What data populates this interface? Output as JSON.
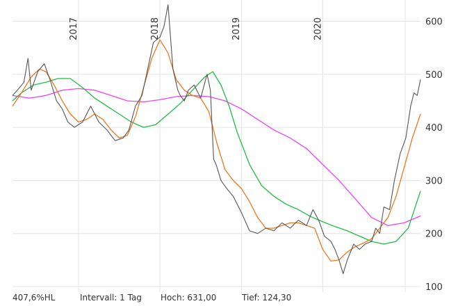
{
  "chart_data": {
    "type": "line",
    "y_ticks": [
      100,
      200,
      300,
      400,
      500,
      600
    ],
    "y_tick_labels": [
      "100",
      "200",
      "300",
      "400",
      "500",
      "600"
    ],
    "ylim": [
      100,
      640
    ],
    "x_tick_labels": [
      "2017",
      "2018",
      "2019",
      "2020"
    ],
    "x_ticks": [
      2017.0,
      2018.0,
      2019.0,
      2020.0
    ],
    "xlim": [
      2016.19,
      2021.2
    ],
    "grid": true,
    "series": [
      {
        "role": "price",
        "color": "#555555",
        "x": [
          2016.19,
          2016.25,
          2016.33,
          2016.38,
          2016.42,
          2016.5,
          2016.58,
          2016.65,
          2016.73,
          2016.8,
          2016.87,
          2016.95,
          2017.05,
          2017.15,
          2017.25,
          2017.35,
          2017.45,
          2017.55,
          2017.62,
          2017.7,
          2017.78,
          2017.85,
          2017.92,
          2018.0,
          2018.05,
          2018.1,
          2018.16,
          2018.22,
          2018.25,
          2018.3,
          2018.35,
          2018.42,
          2018.5,
          2018.58,
          2018.62,
          2018.66,
          2018.69,
          2018.71,
          2018.75,
          2018.82,
          2018.9,
          2019.0,
          2019.1,
          2019.2,
          2019.3,
          2019.4,
          2019.5,
          2019.6,
          2019.7,
          2019.8,
          2019.88,
          2019.95,
          2020.02,
          2020.1,
          2020.15,
          2020.2,
          2020.25,
          2020.3,
          2020.38,
          2020.45,
          2020.52,
          2020.6,
          2020.65,
          2020.7,
          2020.75,
          2020.82,
          2020.88,
          2020.95,
          2021.02,
          2021.08,
          2021.12,
          2021.16,
          2021.2
        ],
        "y": [
          460,
          470,
          485,
          530,
          470,
          505,
          520,
          490,
          450,
          435,
          410,
          400,
          410,
          440,
          410,
          395,
          375,
          380,
          395,
          440,
          460,
          510,
          560,
          570,
          590,
          631,
          510,
          470,
          460,
          450,
          470,
          480,
          455,
          500,
          470,
          340,
          330,
          320,
          300,
          285,
          270,
          240,
          205,
          200,
          210,
          205,
          220,
          210,
          225,
          215,
          245,
          225,
          195,
          185,
          170,
          150,
          124,
          150,
          180,
          170,
          180,
          185,
          210,
          200,
          250,
          245,
          300,
          350,
          380,
          440,
          465,
          460,
          490
        ]
      },
      {
        "role": "average-1",
        "color": "#ee7722",
        "x": [
          2016.19,
          2016.3,
          2016.42,
          2016.52,
          2016.6,
          2016.7,
          2016.8,
          2016.9,
          2017.0,
          2017.1,
          2017.2,
          2017.3,
          2017.4,
          2017.5,
          2017.6,
          2017.7,
          2017.8,
          2017.9,
          2018.0,
          2018.1,
          2018.2,
          2018.3,
          2018.4,
          2018.5,
          2018.6,
          2018.7,
          2018.8,
          2018.9,
          2019.0,
          2019.1,
          2019.2,
          2019.3,
          2019.4,
          2019.5,
          2019.6,
          2019.7,
          2019.8,
          2019.9,
          2020.0,
          2020.1,
          2020.2,
          2020.3,
          2020.4,
          2020.5,
          2020.6,
          2020.7,
          2020.8,
          2020.9,
          2021.0,
          2021.1,
          2021.2
        ],
        "y": [
          440,
          465,
          495,
          510,
          505,
          480,
          450,
          425,
          410,
          415,
          425,
          415,
          395,
          380,
          385,
          420,
          475,
          530,
          565,
          540,
          490,
          470,
          460,
          455,
          430,
          370,
          320,
          300,
          285,
          260,
          230,
          210,
          210,
          215,
          220,
          220,
          215,
          210,
          170,
          148,
          150,
          165,
          175,
          182,
          190,
          210,
          230,
          270,
          325,
          380,
          425
        ]
      },
      {
        "role": "average-2",
        "color": "#22bb44",
        "x": [
          2016.19,
          2016.3,
          2016.45,
          2016.6,
          2016.75,
          2016.9,
          2017.05,
          2017.2,
          2017.35,
          2017.5,
          2017.65,
          2017.8,
          2017.95,
          2018.1,
          2018.25,
          2018.4,
          2018.55,
          2018.65,
          2018.75,
          2018.85,
          2018.95,
          2019.1,
          2019.25,
          2019.4,
          2019.55,
          2019.7,
          2019.85,
          2020.0,
          2020.15,
          2020.3,
          2020.45,
          2020.6,
          2020.75,
          2020.9,
          2021.05,
          2021.2
        ],
        "y": [
          450,
          465,
          480,
          485,
          492,
          492,
          475,
          455,
          440,
          425,
          410,
          400,
          405,
          425,
          445,
          470,
          495,
          505,
          480,
          440,
          390,
          330,
          290,
          270,
          255,
          245,
          232,
          222,
          213,
          205,
          195,
          185,
          180,
          185,
          210,
          280
        ]
      },
      {
        "role": "average-3",
        "color": "#ee44ee",
        "x": [
          2016.19,
          2016.4,
          2016.6,
          2016.8,
          2017.0,
          2017.2,
          2017.4,
          2017.6,
          2017.8,
          2018.0,
          2018.2,
          2018.4,
          2018.6,
          2018.8,
          2019.0,
          2019.2,
          2019.4,
          2019.6,
          2019.8,
          2020.0,
          2020.2,
          2020.4,
          2020.6,
          2020.8,
          2021.0,
          2021.2
        ],
        "y": [
          460,
          455,
          460,
          470,
          473,
          470,
          460,
          450,
          448,
          452,
          458,
          460,
          458,
          450,
          435,
          415,
          395,
          380,
          360,
          330,
          300,
          265,
          230,
          215,
          220,
          233
        ]
      }
    ]
  },
  "footer": {
    "change": "407,6%HL",
    "interval": "Intervall: 1 Tag",
    "high": "Hoch:  631,00",
    "low": "Tief:  124,30"
  }
}
